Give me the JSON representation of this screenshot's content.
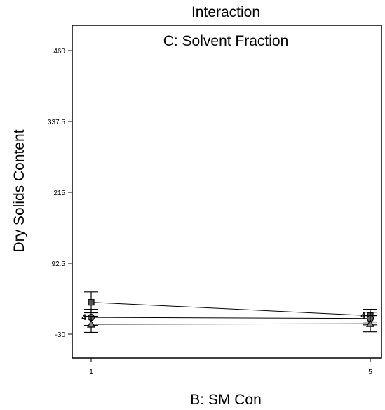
{
  "chart_data": {
    "type": "line",
    "title": "Interaction",
    "subtitle": "C: Solvent Fraction",
    "xlabel": "B:  SM Con",
    "ylabel": "Dry Solids Content",
    "x": [
      1,
      5
    ],
    "x_ticks": [
      "1",
      "5"
    ],
    "y_ticks": [
      "-30",
      "92.5",
      "215",
      "337.5",
      "460"
    ],
    "ylim": [
      -30,
      460
    ],
    "grid": false,
    "series": [
      {
        "marker": "square",
        "values": [
          25,
          2
        ],
        "error_low": [
          7,
          -9
        ],
        "error_high": [
          43,
          13
        ]
      },
      {
        "marker": "circle",
        "values": [
          -1,
          -3
        ],
        "error_low": [
          -15,
          -14
        ],
        "error_high": [
          13,
          8
        ]
      },
      {
        "marker": "triangle",
        "values": [
          -13,
          -12
        ],
        "error_low": [
          -27,
          -26
        ],
        "error_high": [
          1,
          2
        ]
      }
    ],
    "point_labels": [
      {
        "x": 1,
        "y": -1,
        "text": "4"
      },
      {
        "x": 5,
        "y": 2,
        "text": "4"
      }
    ]
  }
}
